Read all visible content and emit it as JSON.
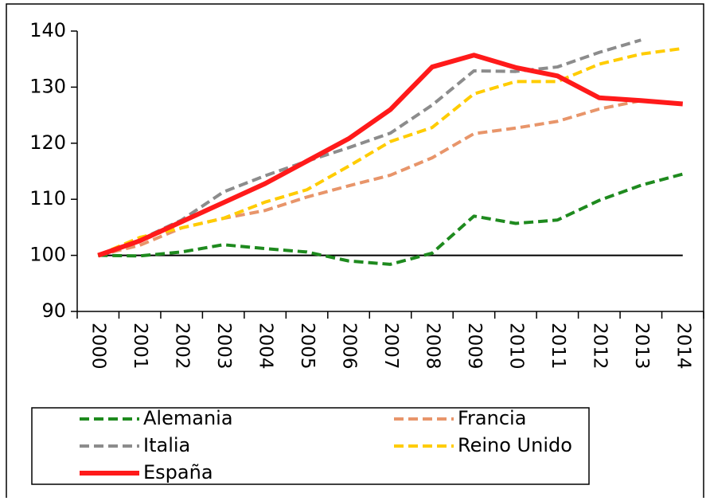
{
  "chart_data": {
    "type": "line",
    "categories": [
      "2000",
      "2001",
      "2002",
      "2003",
      "2004",
      "2005",
      "2006",
      "2007",
      "2008",
      "2009",
      "2010",
      "2011",
      "2012",
      "2013",
      "2014"
    ],
    "series": [
      {
        "name": "Alemania",
        "color": "#1e8a1e",
        "dash": true,
        "values": [
          100,
          99.9,
          100.6,
          101.9,
          101.2,
          100.6,
          99,
          98.4,
          100.4,
          107,
          105.7,
          106.3,
          109.8,
          112.5,
          114.5
        ]
      },
      {
        "name": "Francia",
        "color": "#e8956a",
        "dash": true,
        "values": [
          100,
          101.8,
          104.9,
          106.6,
          108,
          110.4,
          112.4,
          114.3,
          117.4,
          121.7,
          122.7,
          123.9,
          126.1,
          127.6,
          null
        ]
      },
      {
        "name": "Italia",
        "color": "#8c8c8c",
        "dash": true,
        "values": [
          100,
          102.8,
          106.3,
          111.3,
          114.2,
          116.8,
          119.2,
          121.8,
          126.8,
          132.9,
          132.8,
          133.6,
          136.2,
          138.4,
          null
        ]
      },
      {
        "name": "Reino Unido",
        "color": "#ffcc00",
        "dash": true,
        "values": [
          100,
          103.2,
          104.9,
          106.6,
          109.5,
          111.7,
          115.9,
          120.3,
          122.8,
          128.8,
          131,
          131,
          134.1,
          135.9,
          136.9
        ]
      },
      {
        "name": "España",
        "color": "#ff1a1a",
        "dash": false,
        "values": [
          100,
          102.6,
          106,
          109.4,
          112.8,
          116.8,
          120.8,
          126,
          133.6,
          135.7,
          133.5,
          132,
          128.1,
          127.6,
          127
        ]
      }
    ],
    "baseline": 100,
    "ylim": [
      90,
      140
    ],
    "yticks": [
      90,
      100,
      110,
      120,
      130,
      140
    ],
    "legend": "bottom"
  }
}
